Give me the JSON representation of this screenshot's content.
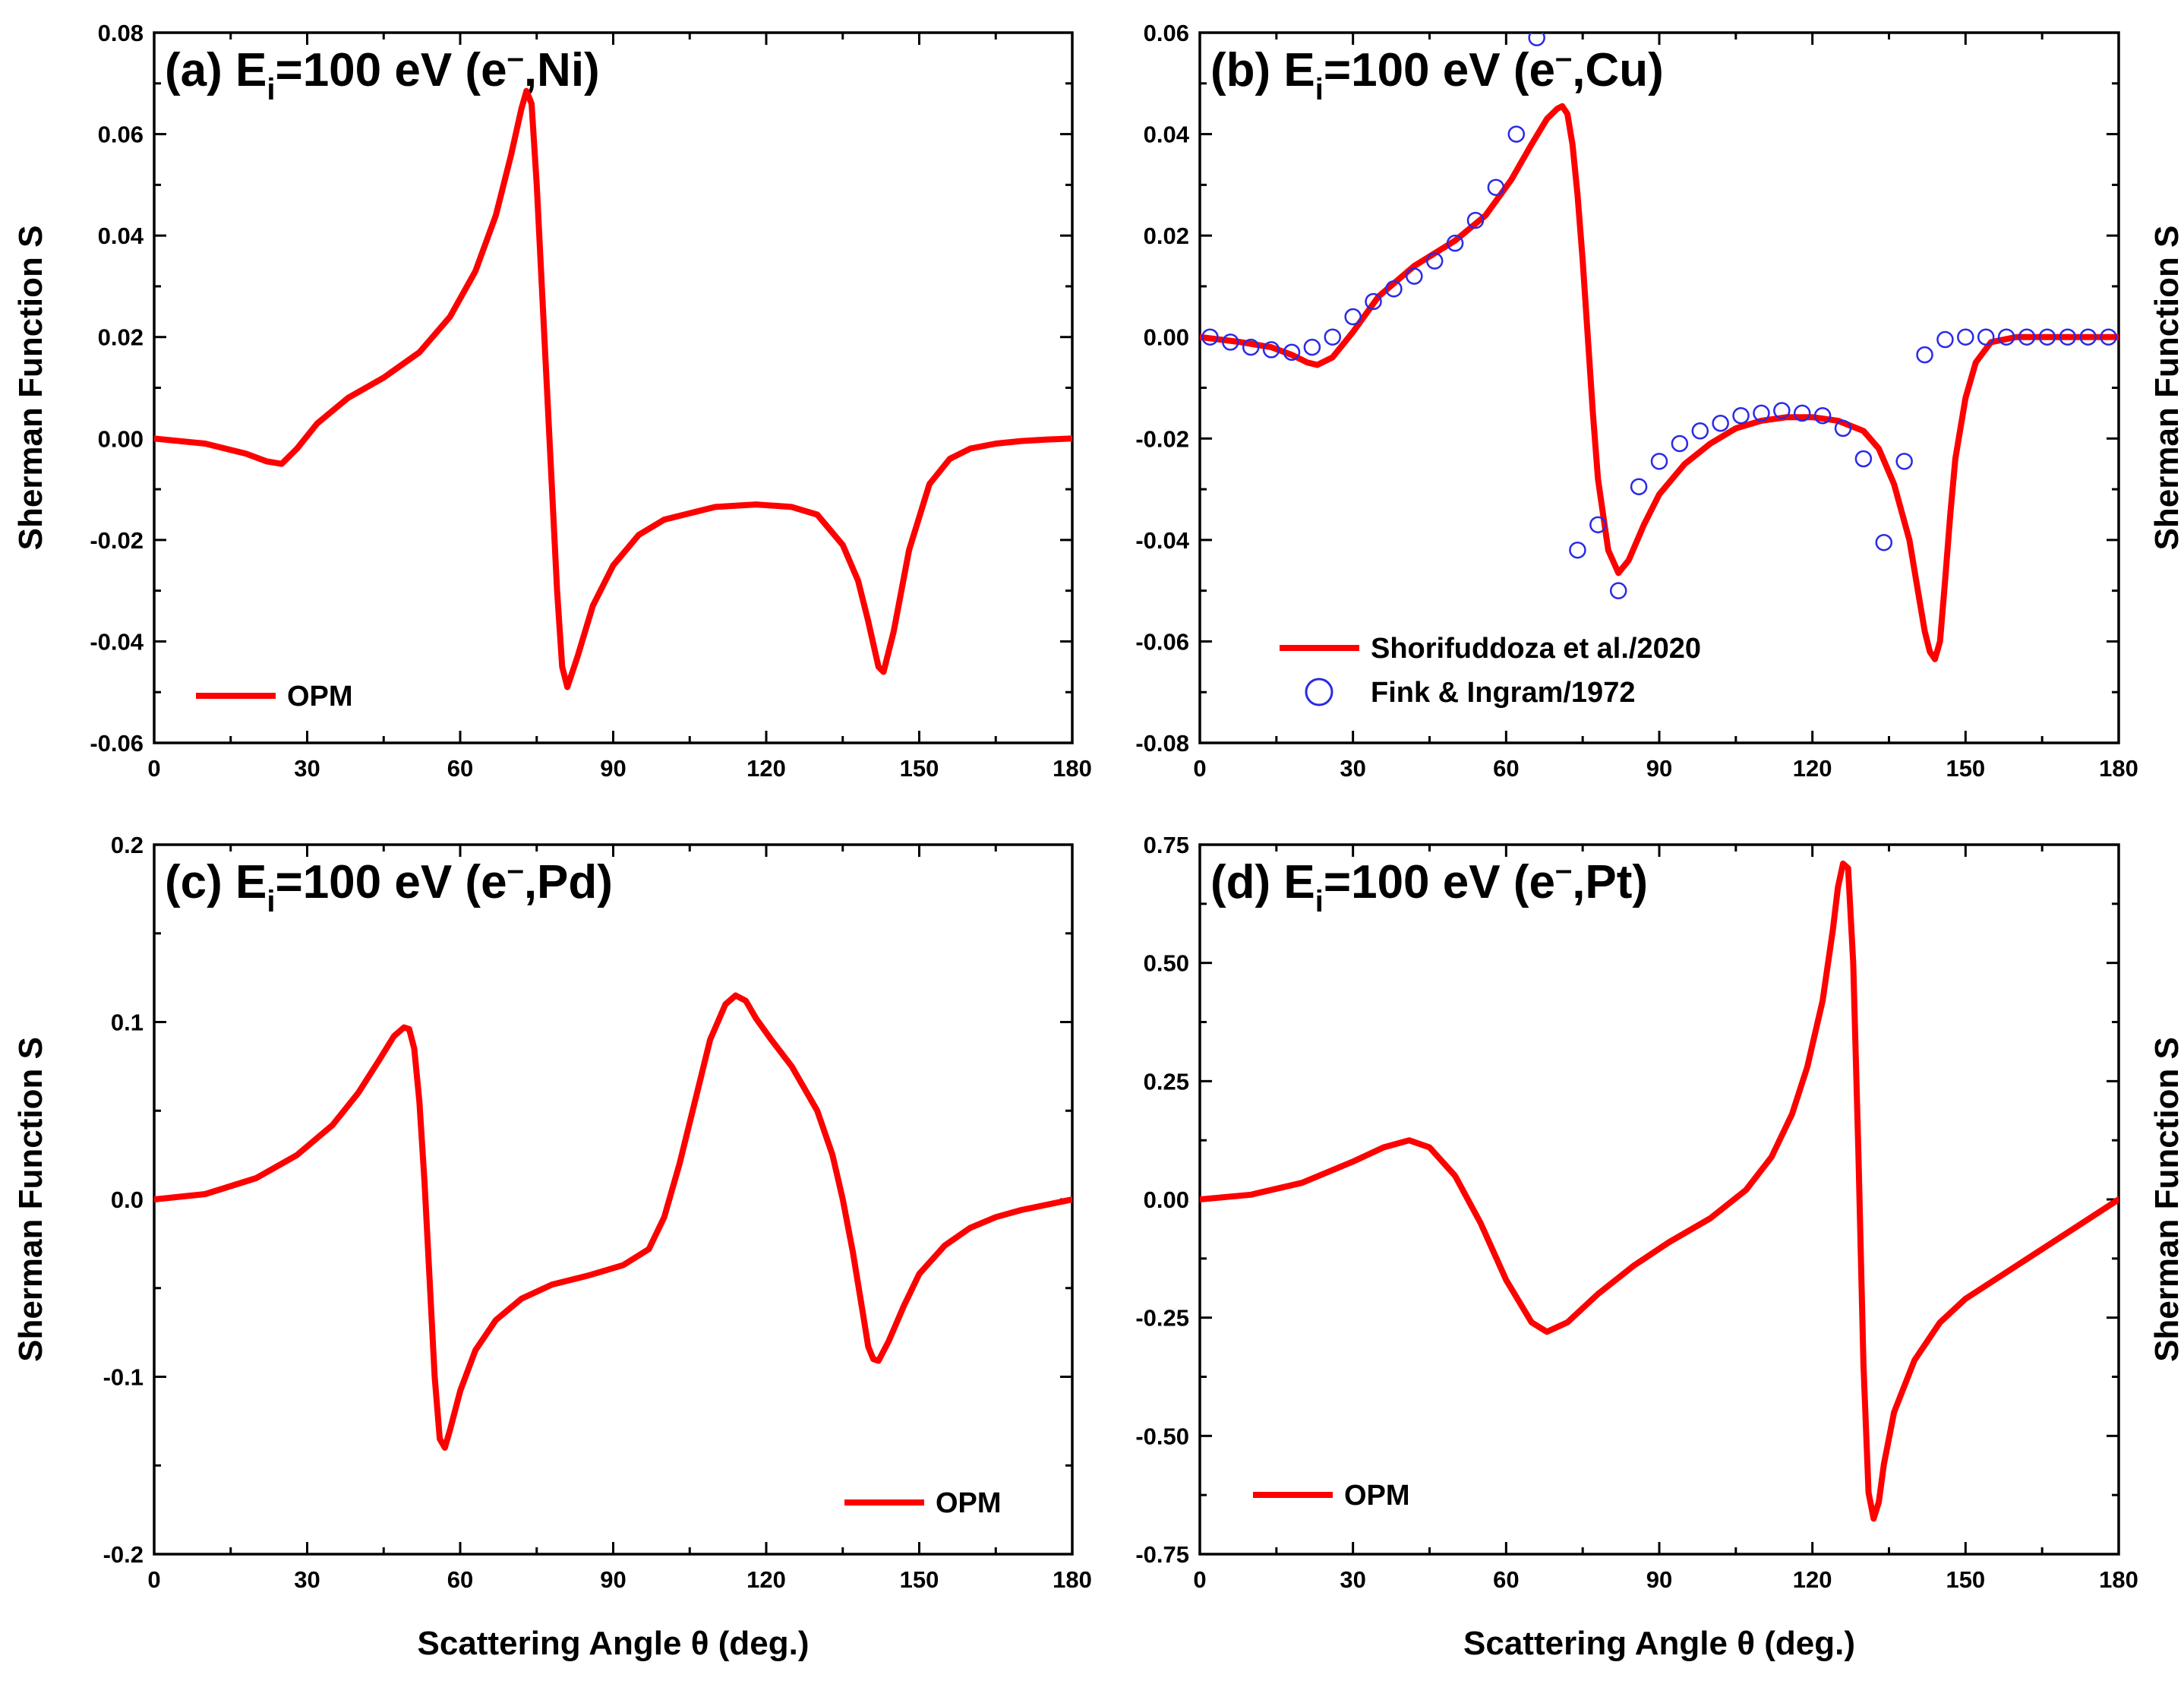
{
  "colors": {
    "theory": "#ff0000",
    "experiment": "#2a2ae6",
    "axis": "#000000"
  },
  "shared": {
    "xlabel": "Scattering Angle θ (deg.)",
    "ylabel": "Sherman Function S",
    "x_ticks": [
      "0",
      "30",
      "60",
      "90",
      "120",
      "150",
      "180"
    ]
  },
  "chart_data": [
    {
      "id": "a",
      "type": "line",
      "title": {
        "prefix": "(a) E",
        "sub": "i",
        "suffix": "=100 eV (e",
        "sup": "–",
        "end": ",Ni)"
      },
      "xlim": [
        0,
        180
      ],
      "ylim": [
        -0.06,
        0.08
      ],
      "y_ticks": [
        -0.06,
        -0.04,
        -0.02,
        0.0,
        0.02,
        0.04,
        0.06,
        0.08
      ],
      "y_tick_labels": [
        "-0.06",
        "-0.04",
        "-0.02",
        "0.00",
        "0.02",
        "0.04",
        "0.06",
        "0.08"
      ],
      "series": [
        {
          "name": "OPM",
          "style": "line",
          "x": [
            0,
            10,
            18,
            22,
            25,
            28,
            32,
            38,
            45,
            52,
            58,
            63,
            67,
            70,
            72,
            73,
            74,
            75,
            76,
            77,
            78,
            79,
            80,
            81,
            83,
            86,
            90,
            95,
            100,
            110,
            118,
            125,
            130,
            135,
            138,
            140,
            142,
            143,
            145,
            148,
            152,
            156,
            160,
            165,
            170,
            175,
            180
          ],
          "y": [
            0.0,
            -0.001,
            -0.003,
            -0.0045,
            -0.005,
            -0.002,
            0.003,
            0.008,
            0.012,
            0.017,
            0.024,
            0.033,
            0.044,
            0.056,
            0.065,
            0.0685,
            0.066,
            0.05,
            0.03,
            0.01,
            -0.01,
            -0.03,
            -0.045,
            -0.049,
            -0.043,
            -0.033,
            -0.025,
            -0.019,
            -0.016,
            -0.0135,
            -0.013,
            -0.0135,
            -0.015,
            -0.021,
            -0.028,
            -0.036,
            -0.045,
            -0.046,
            -0.038,
            -0.022,
            -0.009,
            -0.004,
            -0.002,
            -0.001,
            -0.0005,
            -0.0002,
            0.0
          ]
        }
      ],
      "legend": {
        "placement": "bottom-left",
        "entries": [
          {
            "label": "OPM",
            "style": "line"
          }
        ]
      }
    },
    {
      "id": "b",
      "type": "line",
      "title": {
        "prefix": "(b) E",
        "sub": "i",
        "suffix": "=100 eV (e",
        "sup": "–",
        "end": ",Cu)"
      },
      "xlim": [
        0,
        180
      ],
      "ylim": [
        -0.08,
        0.06
      ],
      "y_ticks": [
        -0.08,
        -0.06,
        -0.04,
        -0.02,
        0.0,
        0.02,
        0.04,
        0.06
      ],
      "y_tick_labels": [
        "-0.08",
        "-0.06",
        "-0.04",
        "-0.02",
        "0.00",
        "0.02",
        "0.04",
        "0.06"
      ],
      "series": [
        {
          "name": "Shorifuddoza et al./2020",
          "style": "line",
          "x": [
            0,
            8,
            14,
            18,
            21,
            23,
            26,
            30,
            35,
            42,
            50,
            56,
            61,
            65,
            68,
            70,
            71,
            72,
            73,
            74,
            75,
            76,
            77,
            78,
            80,
            82,
            84,
            87,
            90,
            95,
            100,
            105,
            110,
            115,
            120,
            125,
            130,
            133,
            136,
            139,
            141,
            142,
            143,
            144,
            145,
            146,
            147,
            148,
            150,
            152,
            155,
            160,
            170,
            180
          ],
          "y": [
            0.0,
            -0.001,
            -0.002,
            -0.0035,
            -0.005,
            -0.0055,
            -0.004,
            0.001,
            0.008,
            0.014,
            0.019,
            0.024,
            0.031,
            0.038,
            0.043,
            0.045,
            0.0455,
            0.044,
            0.038,
            0.028,
            0.015,
            0.0,
            -0.015,
            -0.028,
            -0.042,
            -0.0465,
            -0.044,
            -0.037,
            -0.031,
            -0.025,
            -0.021,
            -0.018,
            -0.0165,
            -0.0158,
            -0.0158,
            -0.0165,
            -0.0185,
            -0.022,
            -0.029,
            -0.04,
            -0.052,
            -0.058,
            -0.062,
            -0.0635,
            -0.06,
            -0.048,
            -0.035,
            -0.024,
            -0.012,
            -0.005,
            -0.001,
            0.0,
            0.0,
            0.0
          ]
        },
        {
          "name": "Fink & Ingram/1972",
          "style": "marker",
          "x": [
            2,
            6,
            10,
            14,
            18,
            22,
            26,
            30,
            34,
            38,
            42,
            46,
            50,
            54,
            58,
            62,
            66,
            74,
            78,
            82,
            86,
            90,
            94,
            98,
            102,
            106,
            110,
            114,
            118,
            122,
            126,
            130,
            134,
            138,
            142,
            146,
            150,
            154,
            158,
            162,
            166,
            170,
            174,
            178
          ],
          "y": [
            0.0,
            -0.001,
            -0.002,
            -0.0025,
            -0.003,
            -0.002,
            0.0,
            0.004,
            0.007,
            0.0095,
            0.012,
            0.015,
            0.0185,
            0.023,
            0.0295,
            0.04,
            0.059,
            -0.042,
            -0.037,
            -0.05,
            -0.0295,
            -0.0245,
            -0.021,
            -0.0185,
            -0.017,
            -0.0155,
            -0.015,
            -0.0145,
            -0.015,
            -0.0155,
            -0.018,
            -0.024,
            -0.0405,
            -0.0245,
            -0.0035,
            -0.0005,
            0.0,
            0.0,
            0.0,
            0.0,
            0.0,
            0.0,
            0.0,
            0.0
          ]
        }
      ],
      "legend": {
        "placement": "bottom-left",
        "entries": [
          {
            "label": "Shorifuddoza et al./2020",
            "style": "line"
          },
          {
            "label": "Fink & Ingram/1972",
            "style": "marker"
          }
        ]
      }
    },
    {
      "id": "c",
      "type": "line",
      "title": {
        "prefix": "(c) E",
        "sub": "i",
        "suffix": "=100 eV (e",
        "sup": "–",
        "end": ",Pd)"
      },
      "xlim": [
        0,
        180
      ],
      "ylim": [
        -0.2,
        0.2
      ],
      "y_ticks": [
        -0.2,
        -0.1,
        0.0,
        0.1,
        0.2
      ],
      "y_tick_labels": [
        "-0.2",
        "-0.1",
        "0.0",
        "0.1",
        "0.2"
      ],
      "series": [
        {
          "name": "OPM",
          "style": "line",
          "x": [
            0,
            10,
            20,
            28,
            35,
            40,
            44,
            47,
            49,
            50,
            51,
            52,
            53,
            54,
            55,
            56,
            57,
            58,
            60,
            63,
            67,
            72,
            78,
            85,
            92,
            97,
            100,
            103,
            106,
            109,
            112,
            114,
            116,
            118,
            121,
            125,
            130,
            133,
            135,
            137,
            139,
            140,
            141,
            142,
            144,
            147,
            150,
            155,
            160,
            165,
            170,
            175,
            180
          ],
          "y": [
            0.0,
            0.003,
            0.012,
            0.025,
            0.042,
            0.06,
            0.078,
            0.092,
            0.097,
            0.096,
            0.085,
            0.055,
            0.01,
            -0.045,
            -0.1,
            -0.135,
            -0.14,
            -0.13,
            -0.108,
            -0.085,
            -0.068,
            -0.056,
            -0.048,
            -0.043,
            -0.037,
            -0.028,
            -0.01,
            0.02,
            0.055,
            0.09,
            0.11,
            0.115,
            0.112,
            0.102,
            0.09,
            0.075,
            0.05,
            0.025,
            0.0,
            -0.03,
            -0.065,
            -0.083,
            -0.09,
            -0.091,
            -0.08,
            -0.06,
            -0.042,
            -0.026,
            -0.016,
            -0.01,
            -0.006,
            -0.003,
            0.0
          ]
        }
      ],
      "legend": {
        "placement": "bottom-right",
        "entries": [
          {
            "label": "OPM",
            "style": "line"
          }
        ]
      }
    },
    {
      "id": "d",
      "type": "line",
      "title": {
        "prefix": "(d) E",
        "sub": "i",
        "suffix": "=100 eV (e",
        "sup": "–",
        "end": ",Pt)"
      },
      "xlim": [
        0,
        180
      ],
      "ylim": [
        -0.75,
        0.75
      ],
      "y_ticks": [
        -0.75,
        -0.5,
        -0.25,
        0.0,
        0.25,
        0.5,
        0.75
      ],
      "y_tick_labels": [
        "-0.75",
        "-0.50",
        "-0.25",
        "0.00",
        "0.25",
        "0.50",
        "0.75"
      ],
      "series": [
        {
          "name": "OPM",
          "style": "line",
          "x": [
            0,
            10,
            20,
            30,
            36,
            41,
            45,
            50,
            55,
            60,
            65,
            68,
            72,
            78,
            85,
            92,
            100,
            107,
            112,
            116,
            119,
            122,
            124,
            125,
            126,
            127,
            128,
            129,
            130,
            131,
            132,
            133,
            134,
            136,
            140,
            145,
            150,
            160,
            170,
            180
          ],
          "y": [
            0.0,
            0.01,
            0.035,
            0.08,
            0.11,
            0.125,
            0.11,
            0.05,
            -0.05,
            -0.17,
            -0.26,
            -0.28,
            -0.26,
            -0.2,
            -0.14,
            -0.09,
            -0.04,
            0.02,
            0.09,
            0.18,
            0.28,
            0.42,
            0.57,
            0.66,
            0.71,
            0.7,
            0.5,
            0.1,
            -0.35,
            -0.62,
            -0.675,
            -0.64,
            -0.56,
            -0.45,
            -0.34,
            -0.26,
            -0.21,
            -0.14,
            -0.07,
            0.0
          ]
        }
      ],
      "legend": {
        "placement": "bottom-left",
        "entries": [
          {
            "label": "OPM",
            "style": "line"
          }
        ]
      }
    }
  ]
}
